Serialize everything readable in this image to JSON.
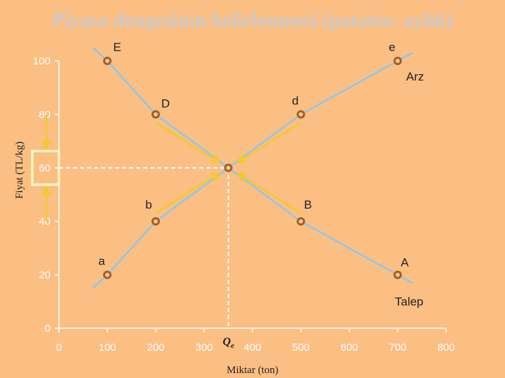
{
  "chart_data": {
    "type": "line",
    "title": "Piyasa dengesinin belirlenmesi (patates: aylık)",
    "xlabel": "Miktar (ton)",
    "ylabel": "Fiyat (TL/kg)",
    "xlim": [
      0,
      800
    ],
    "ylim": [
      0,
      100
    ],
    "x_ticks": [
      "0",
      "100",
      "200",
      "300",
      "400",
      "500",
      "600",
      "700",
      "800"
    ],
    "y_ticks": [
      "0",
      "20",
      "40",
      "60",
      "80",
      "100"
    ],
    "equilibrium": {
      "label": "Qe",
      "x": 350,
      "y": 60
    },
    "series": [
      {
        "name": "Talep",
        "x": [
          70,
          100,
          200,
          350,
          500,
          700,
          730
        ],
        "y": [
          105,
          100,
          80,
          60,
          40,
          20,
          17
        ],
        "points": [
          {
            "label": "E",
            "x": 100,
            "y": 100
          },
          {
            "label": "D",
            "x": 200,
            "y": 80
          },
          {
            "label": "B",
            "x": 500,
            "y": 40
          },
          {
            "label": "A",
            "x": 700,
            "y": 20
          }
        ]
      },
      {
        "name": "Arz",
        "x": [
          70,
          100,
          200,
          350,
          500,
          700,
          730
        ],
        "y": [
          15,
          20,
          40,
          60,
          80,
          100,
          103
        ],
        "points": [
          {
            "label": "a",
            "x": 100,
            "y": 20
          },
          {
            "label": "b",
            "x": 200,
            "y": 40
          },
          {
            "label": "d",
            "x": 500,
            "y": 80
          },
          {
            "label": "e",
            "x": 700,
            "y": 100
          }
        ]
      }
    ],
    "colors": {
      "background": "#FBBE83",
      "curve": "#8CC8EE",
      "point_stroke": "#A0622A",
      "point_fill": "#F7C48E",
      "arrow": "#F2CA2A",
      "dashed": "#FFFFFF",
      "highlight_box": "#FFF6BE"
    }
  }
}
